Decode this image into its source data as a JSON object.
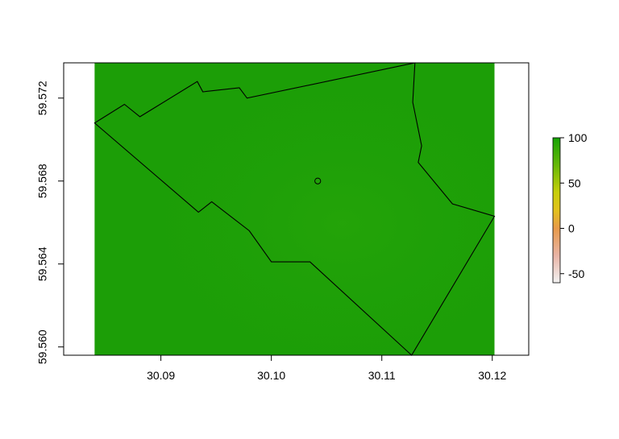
{
  "chart_data": {
    "type": "heatmap",
    "title": "",
    "xlabel": "",
    "ylabel": "",
    "xlim": [
      30.0812,
      30.1233
    ],
    "ylim": [
      59.5596,
      59.5737
    ],
    "raster_extent": {
      "x": [
        30.084,
        30.1202
      ],
      "y": [
        59.5596,
        59.5737
      ]
    },
    "raster_value_approx": 85,
    "x_ticks": [
      {
        "value": 30.09,
        "label": "30.09"
      },
      {
        "value": 30.1,
        "label": "30.10"
      },
      {
        "value": 30.11,
        "label": "30.11"
      },
      {
        "value": 30.12,
        "label": "30.12"
      }
    ],
    "y_ticks": [
      {
        "value": 59.56,
        "label": "59.560"
      },
      {
        "value": 59.564,
        "label": "59.564"
      },
      {
        "value": 59.568,
        "label": "59.568"
      },
      {
        "value": 59.572,
        "label": "59.572"
      }
    ],
    "polygon": [
      [
        30.084,
        59.5708
      ],
      [
        30.0867,
        59.5717
      ],
      [
        30.0881,
        59.5711
      ],
      [
        30.0933,
        59.5728
      ],
      [
        30.0938,
        59.5723
      ],
      [
        30.0971,
        59.5725
      ],
      [
        30.0978,
        59.572
      ],
      [
        30.113,
        59.5737
      ],
      [
        30.1128,
        59.5718
      ],
      [
        30.1136,
        59.5697
      ],
      [
        30.1133,
        59.5689
      ],
      [
        30.1164,
        59.5669
      ],
      [
        30.1202,
        59.5663
      ],
      [
        30.1127,
        59.5596
      ],
      [
        30.1035,
        59.5641
      ],
      [
        30.1,
        59.5641
      ],
      [
        30.098,
        59.5656
      ],
      [
        30.0946,
        59.567
      ],
      [
        30.0934,
        59.5665
      ],
      [
        30.084,
        59.5708
      ]
    ],
    "marker": {
      "x": 30.1042,
      "y": 59.568
    },
    "legend": {
      "position": "right",
      "range": [
        -60,
        100
      ],
      "ticks": [
        {
          "value": 100,
          "label": "100"
        },
        {
          "value": 50,
          "label": "50"
        },
        {
          "value": 0,
          "label": "0"
        },
        {
          "value": -50,
          "label": "-50"
        }
      ],
      "colors": [
        {
          "value": -60,
          "color": "#f2f2f2"
        },
        {
          "value": -30,
          "color": "#e9b4a6"
        },
        {
          "value": 0,
          "color": "#e89a4a"
        },
        {
          "value": 20,
          "color": "#e3c21c"
        },
        {
          "value": 40,
          "color": "#c7cf0a"
        },
        {
          "value": 70,
          "color": "#66b808"
        },
        {
          "value": 100,
          "color": "#16a305"
        }
      ]
    },
    "raster_color": "#1c9e07",
    "raster_color_light": "#2aa80a",
    "grid": false
  }
}
